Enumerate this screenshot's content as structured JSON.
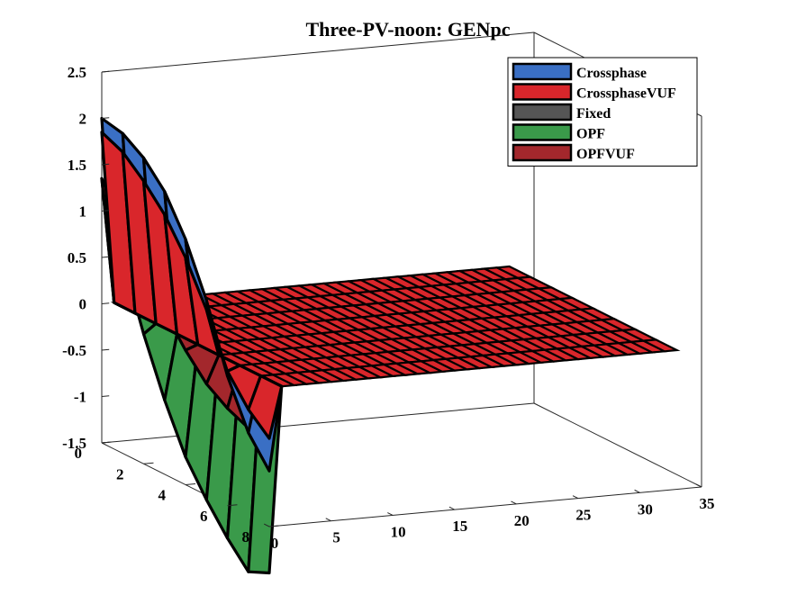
{
  "chart_data": {
    "type": "surface3d",
    "title": "Three-PV-noon: GENpc",
    "xlabel": "",
    "ylabel": "",
    "zlabel": "",
    "xlim": [
      0,
      35
    ],
    "ylim": [
      0,
      8
    ],
    "zlim": [
      -1.5,
      2.5
    ],
    "x_ticks": [
      "0",
      "5",
      "10",
      "15",
      "20",
      "25",
      "30",
      "35"
    ],
    "y_ticks": [
      "0",
      "2",
      "4",
      "6",
      "8"
    ],
    "z_ticks": [
      "-1.5",
      "-1",
      "-0.5",
      "0",
      "0.5",
      "1",
      "1.5",
      "2",
      "2.5"
    ],
    "grid": false,
    "legend_position": "top-right",
    "series": [
      {
        "name": "Crossphase",
        "color": "#3a6fc4",
        "values_at_x0": [
          2.0,
          1.95,
          1.8,
          1.55,
          1.15,
          0.6,
          -0.1,
          -0.6,
          -0.9
        ]
      },
      {
        "name": "CrossphaseVUF",
        "color": "#d9262b",
        "values_at_x0": [
          1.85,
          1.75,
          1.55,
          1.3,
          0.95,
          0.5,
          -0.05,
          -0.35,
          -0.55
        ]
      },
      {
        "name": "Fixed",
        "color": "#555555",
        "values_at_x0": [
          0,
          0,
          0,
          0,
          0,
          0,
          0,
          0,
          0
        ]
      },
      {
        "name": "OPF",
        "color": "#3a9a4a",
        "values_at_x0": [
          1.35,
          0.6,
          -0.1,
          -0.7,
          -1.2,
          -1.55,
          -1.85,
          -2.1,
          -2.0
        ]
      },
      {
        "name": "OPFVUF",
        "color": "#a3272c",
        "values_at_x0": [
          1.35,
          1.0,
          0.6,
          0.25,
          -0.05,
          -0.3,
          -0.45,
          -0.55,
          -0.55
        ]
      }
    ],
    "flat_region": {
      "x_range": [
        1,
        33
      ],
      "value": 0
    }
  }
}
